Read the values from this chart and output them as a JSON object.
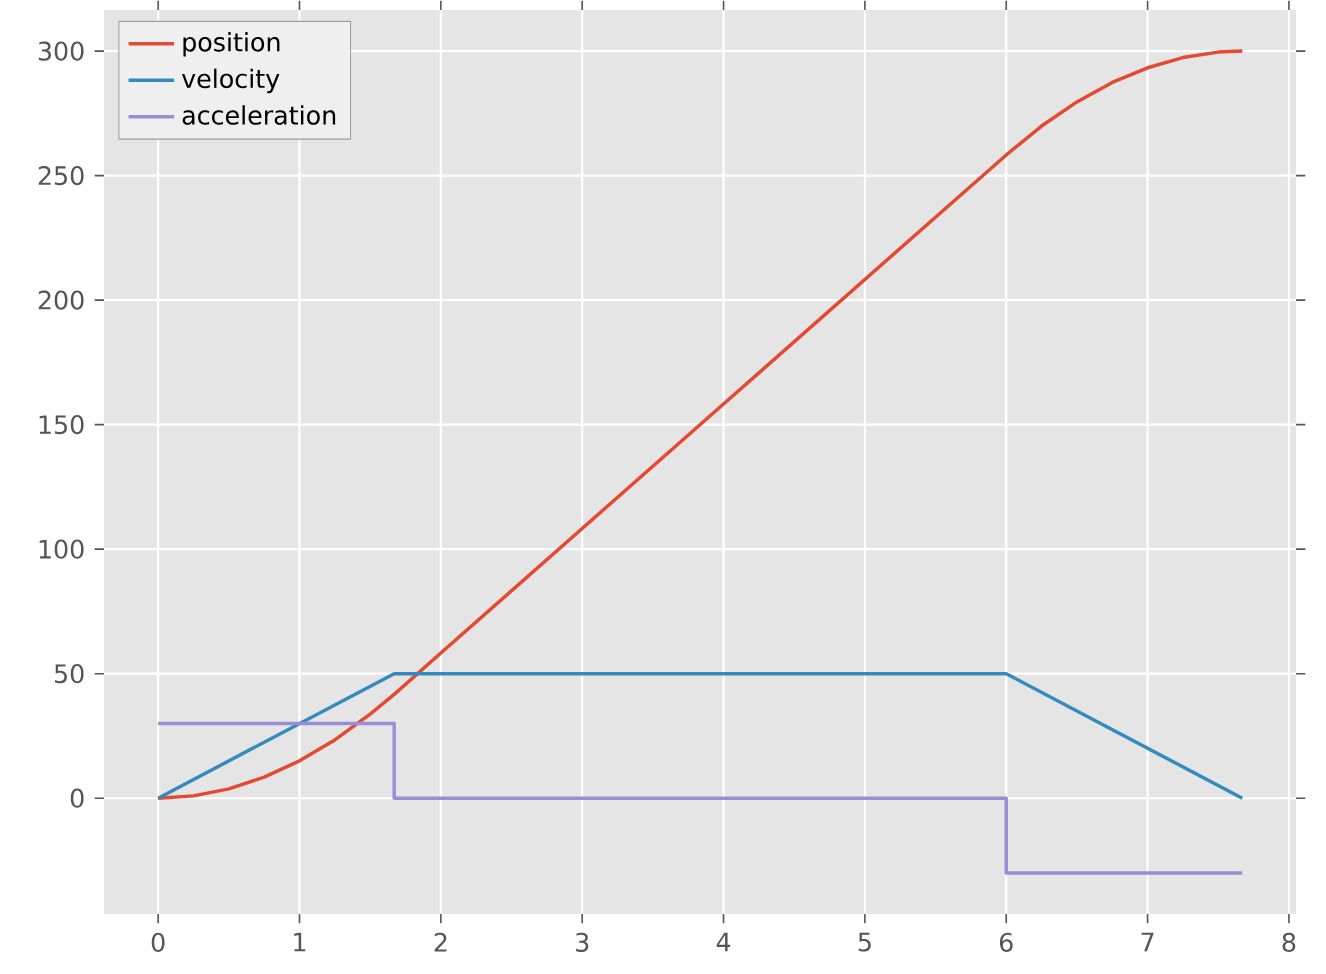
{
  "chart_data": {
    "type": "line",
    "xlim": [
      -0.383,
      8.05
    ],
    "ylim": [
      -46.5,
      316.5
    ],
    "xticks": [
      0,
      1,
      2,
      3,
      4,
      5,
      6,
      7,
      8
    ],
    "yticks": [
      0,
      50,
      100,
      150,
      200,
      250,
      300
    ],
    "grid": true,
    "legend": "top left",
    "series": [
      {
        "name": "position",
        "color": "#e24a33",
        "x": [
          0,
          0.25,
          0.5,
          0.75,
          1,
          1.25,
          1.5,
          1.67,
          2,
          3,
          4,
          5,
          6,
          6.25,
          6.5,
          6.75,
          7,
          7.25,
          7.5,
          7.67
        ],
        "values": [
          0,
          0.94,
          3.75,
          8.44,
          15,
          23.4,
          33.75,
          41.7,
          58.3,
          108.3,
          158.3,
          208.3,
          258.3,
          269.9,
          279.6,
          287.4,
          293.3,
          297.4,
          299.6,
          300
        ]
      },
      {
        "name": "velocity",
        "color": "#348abd",
        "x": [
          0,
          1.67,
          6,
          7.67
        ],
        "values": [
          0,
          50,
          50,
          0
        ]
      },
      {
        "name": "acceleration",
        "color": "#988ed5",
        "x": [
          0,
          1.67,
          1.67,
          6,
          6,
          7.67
        ],
        "values": [
          30,
          30,
          0,
          0,
          -30,
          -30
        ]
      }
    ]
  }
}
